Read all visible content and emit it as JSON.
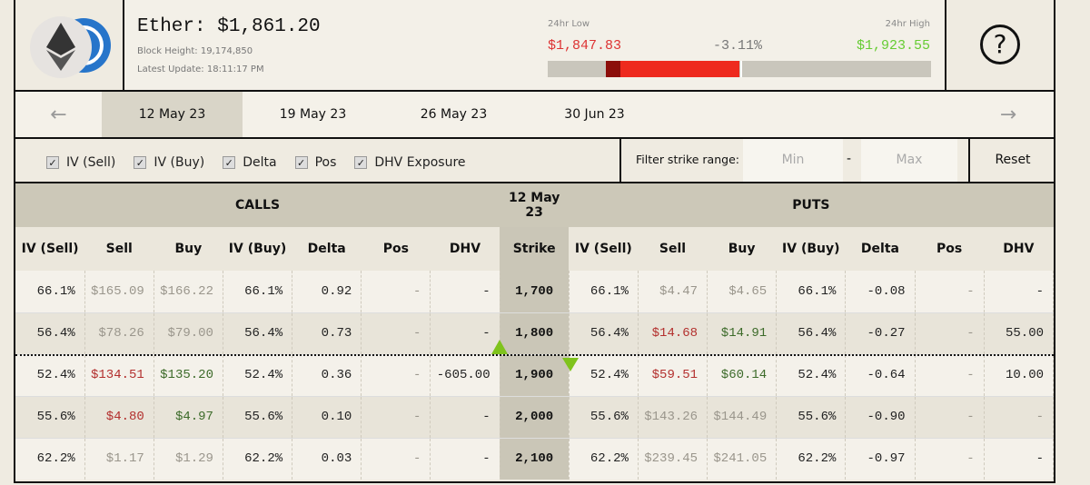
{
  "header": {
    "title": "Ether: $1,861.20",
    "block_height": "Block Height: 19,174,850",
    "latest_update": "Latest Update: 18:11:17 PM",
    "low_label": "24hr Low",
    "low": "$1,847.83",
    "change": "-3.11%",
    "high_label": "24hr High",
    "high": "$1,923.55",
    "help": "?"
  },
  "dates": [
    "12 May 23",
    "19 May 23",
    "26 May 23",
    "30 Jun 23"
  ],
  "filters": {
    "options": [
      "IV (Sell)",
      "IV (Buy)",
      "Delta",
      "Pos",
      "DHV Exposure"
    ],
    "strike_label": "Filter strike range:",
    "min": "Min",
    "separator": "-",
    "max": "Max",
    "reset": "Reset"
  },
  "table": {
    "calls": "CALLS",
    "expiry": "12 May 23",
    "puts": "PUTS",
    "columns": [
      "IV (Sell)",
      "Sell",
      "Buy",
      "IV (Buy)",
      "Delta",
      "Pos",
      "DHV",
      "Strike",
      "IV (Sell)",
      "Sell",
      "Buy",
      "IV (Buy)",
      "Delta",
      "Pos",
      "DHV"
    ],
    "rows": [
      {
        "cells": [
          "66.1%",
          "$165.09",
          "$166.22",
          "66.1%",
          "0.92",
          "-",
          "-",
          "1,700",
          "66.1%",
          "$4.47",
          "$4.65",
          "66.1%",
          "-0.08",
          "-",
          "-"
        ],
        "tones": [
          "dark",
          "grey",
          "grey",
          "dark",
          "dark",
          "grey",
          "dark",
          "dark",
          "dark",
          "grey",
          "grey",
          "dark",
          "dark",
          "grey",
          "dark"
        ]
      },
      {
        "cells": [
          "56.4%",
          "$78.26",
          "$79.00",
          "56.4%",
          "0.73",
          "-",
          "-",
          "1,800",
          "56.4%",
          "$14.68",
          "$14.91",
          "56.4%",
          "-0.27",
          "-",
          "55.00"
        ],
        "tones": [
          "dark",
          "grey",
          "grey",
          "dark",
          "dark",
          "grey",
          "dark",
          "dark",
          "dark",
          "red",
          "green",
          "dark",
          "dark",
          "grey",
          "dark"
        ]
      },
      {
        "cells": [
          "52.4%",
          "$134.51",
          "$135.20",
          "52.4%",
          "0.36",
          "-",
          "-605.00",
          "1,900",
          "52.4%",
          "$59.51",
          "$60.14",
          "52.4%",
          "-0.64",
          "-",
          "10.00"
        ],
        "tones": [
          "dark",
          "red",
          "green",
          "dark",
          "dark",
          "grey",
          "dark",
          "dark",
          "dark",
          "red",
          "green",
          "dark",
          "dark",
          "grey",
          "dark"
        ]
      },
      {
        "cells": [
          "55.6%",
          "$4.80",
          "$4.97",
          "55.6%",
          "0.10",
          "-",
          "-",
          "2,000",
          "55.6%",
          "$143.26",
          "$144.49",
          "55.6%",
          "-0.90",
          "-",
          "-"
        ],
        "tones": [
          "dark",
          "red",
          "green",
          "dark",
          "dark",
          "grey",
          "dark",
          "dark",
          "dark",
          "grey",
          "grey",
          "dark",
          "dark",
          "grey",
          "grey"
        ]
      },
      {
        "cells": [
          "62.2%",
          "$1.17",
          "$1.29",
          "62.2%",
          "0.03",
          "-",
          "-",
          "2,100",
          "62.2%",
          "$239.45",
          "$241.05",
          "62.2%",
          "-0.97",
          "-",
          "-"
        ],
        "tones": [
          "dark",
          "grey",
          "grey",
          "dark",
          "dark",
          "grey",
          "dark",
          "dark",
          "dark",
          "grey",
          "grey",
          "dark",
          "dark",
          "grey",
          "dark"
        ]
      }
    ]
  }
}
